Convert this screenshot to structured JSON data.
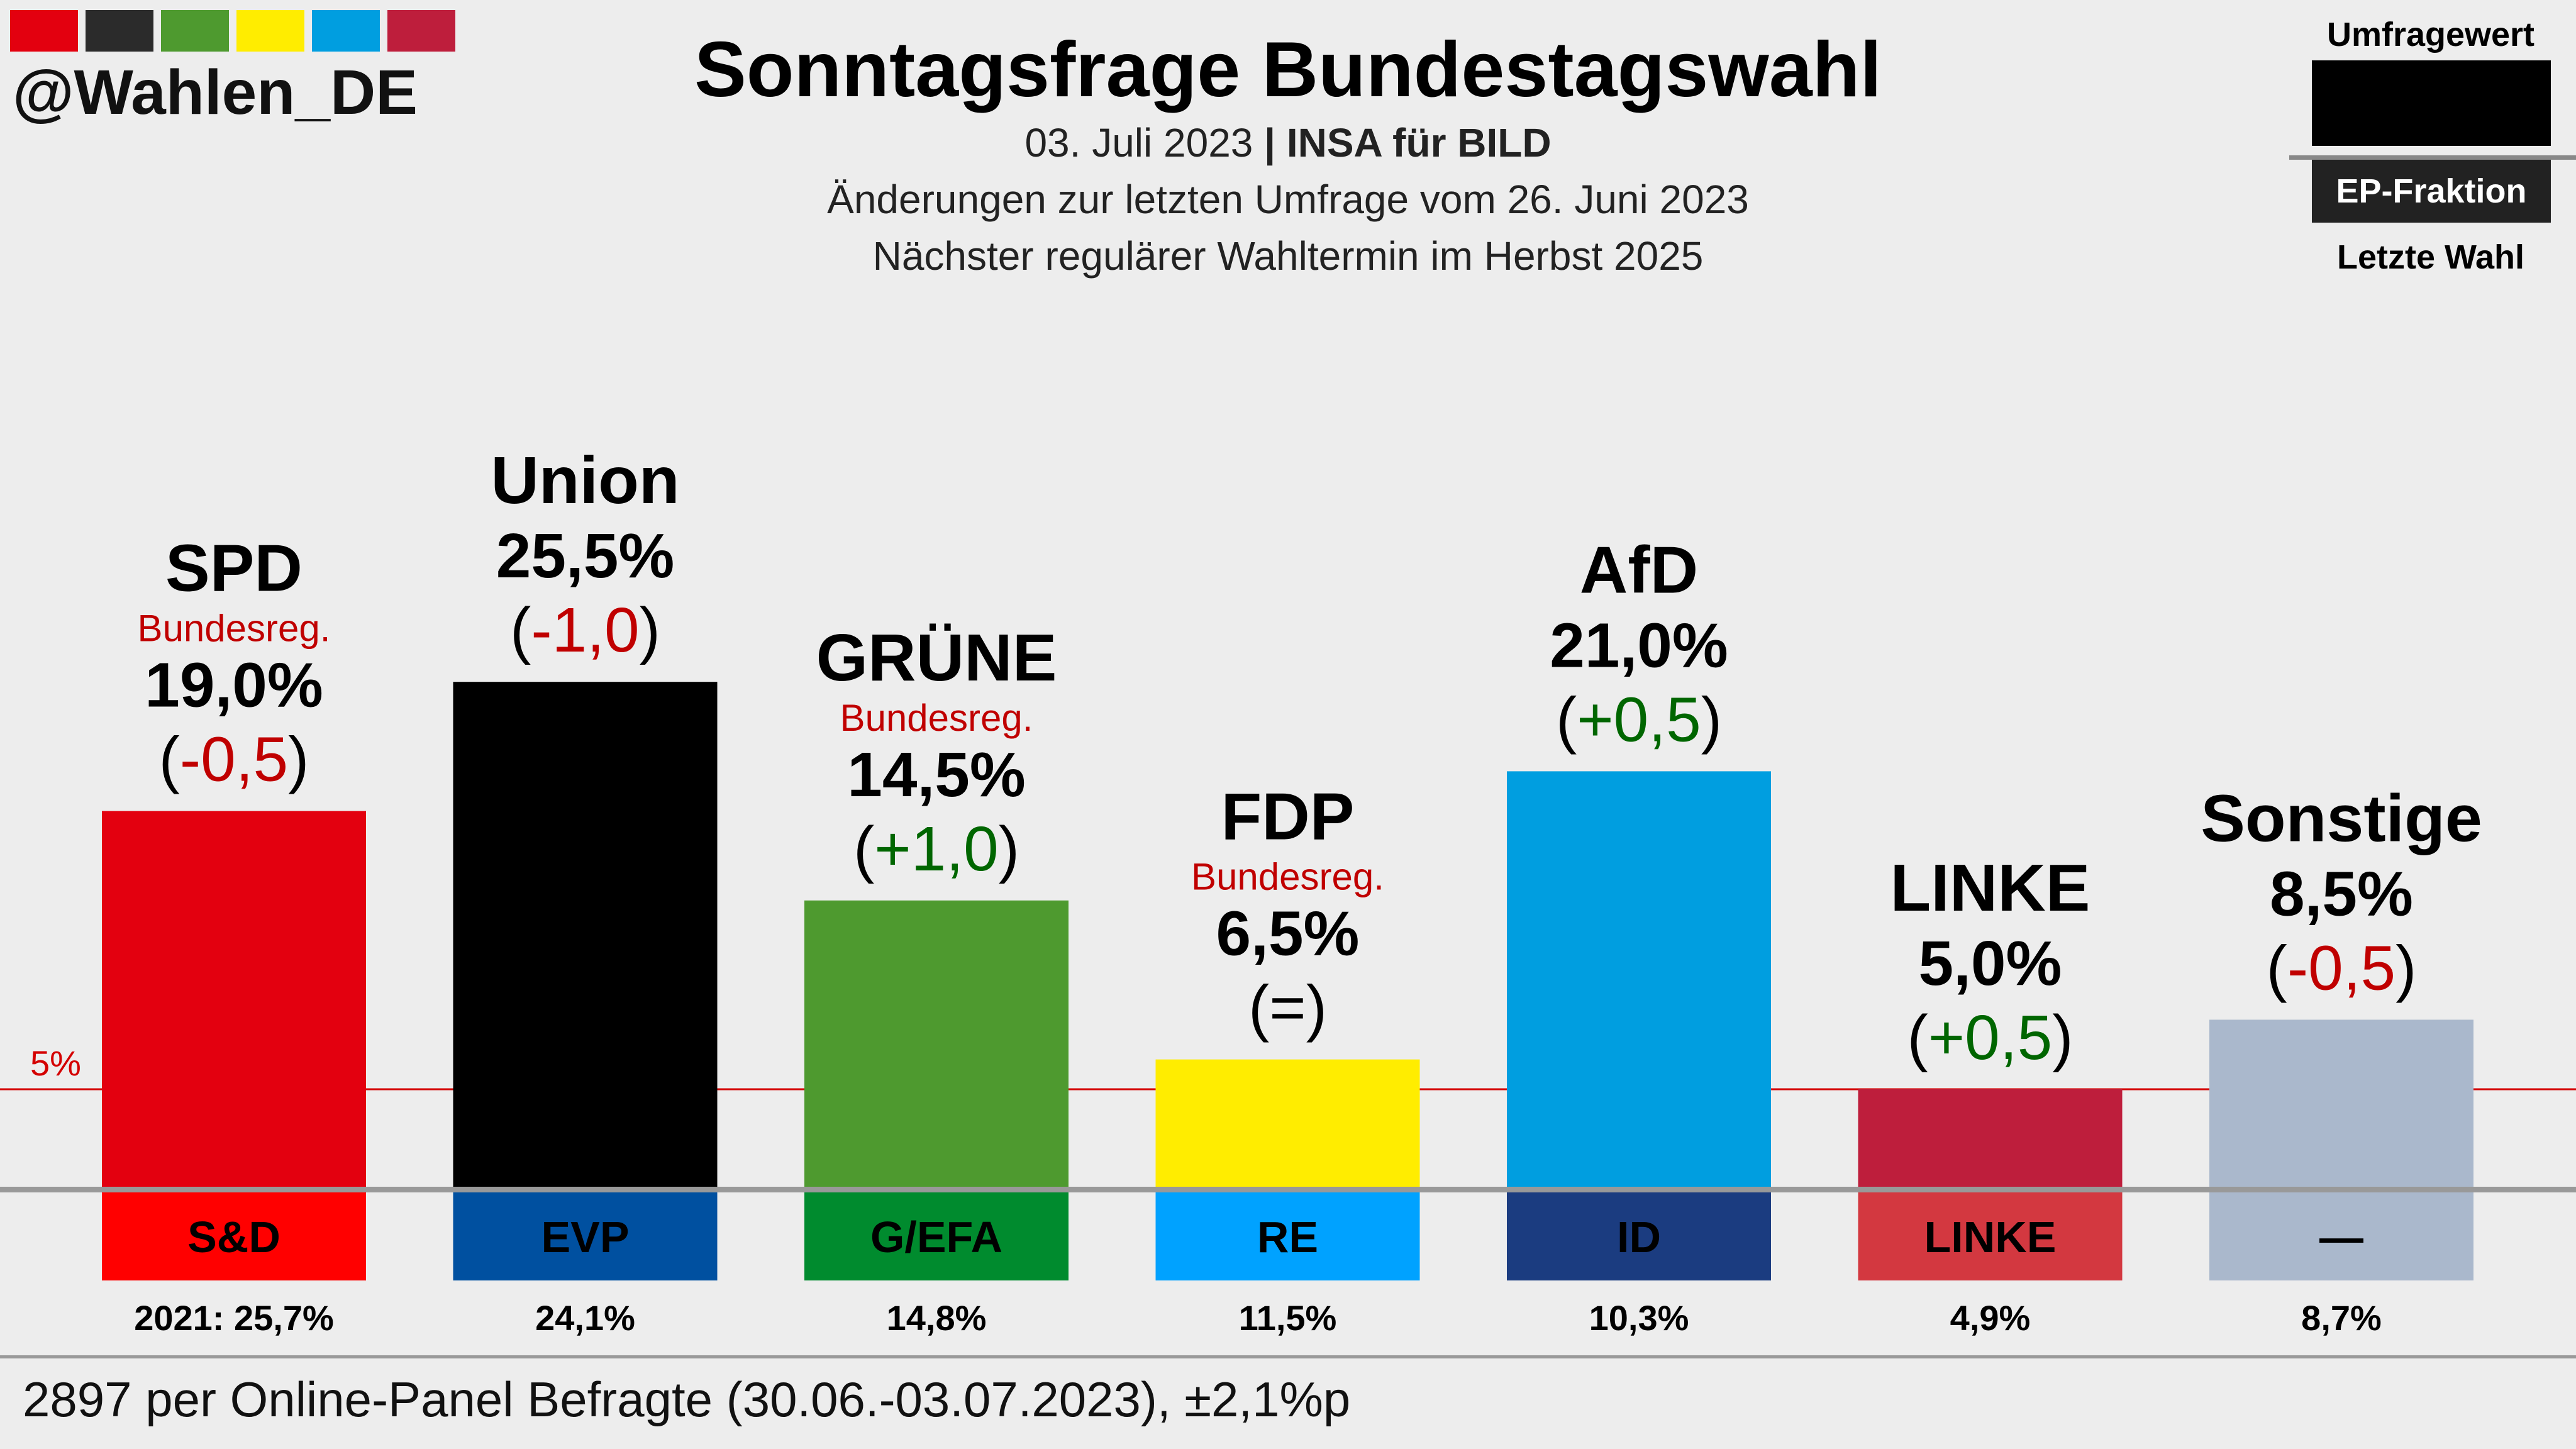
{
  "header": {
    "handle": "@Wahlen_DE",
    "title": "Sonntagsfrage Bundestagswahl",
    "date": "03. Juli 2023",
    "separator": "|",
    "institute": "INSA für BILD",
    "change_note": "Änderungen zur letzten Umfrage vom 26. Juni 2023",
    "next_election": "Nächster regulärer Wahltermin im Herbst 2025"
  },
  "color_swatches": [
    "#e3000f",
    "#2b2b2b",
    "#4e9a2f",
    "#ffed00",
    "#009ee0",
    "#be1e3c"
  ],
  "legend": {
    "top_label": "Umfragewert",
    "box_label": "EP-Fraktion",
    "bottom_label": "Letzte Wahl"
  },
  "chart_data": {
    "type": "bar",
    "categories": [
      "SPD",
      "Union",
      "GRÜNE",
      "FDP",
      "AfD",
      "LINKE",
      "Sonstige"
    ],
    "values": [
      19.0,
      25.5,
      14.5,
      6.5,
      21.0,
      5.0,
      8.5
    ],
    "value_labels": [
      "19,0%",
      "25,5%",
      "14,5%",
      "6,5%",
      "21,0%",
      "5,0%",
      "8,5%"
    ],
    "changes": [
      "-0,5",
      "-1,0",
      "+1,0",
      "=",
      "+0,5",
      "+0,5",
      "-0,5"
    ],
    "change_direction": [
      "down",
      "down",
      "up",
      "same",
      "up",
      "up",
      "down"
    ],
    "government": [
      "Bundesreg.",
      "",
      "Bundesreg.",
      "Bundesreg.",
      "",
      "",
      ""
    ],
    "colors": [
      "#e3000f",
      "#000000",
      "#4e9a2f",
      "#ffed00",
      "#009ee0",
      "#be1e3c",
      "#aab8cc"
    ],
    "ep_groups": [
      "S&D",
      "EVP",
      "G/EFA",
      "RE",
      "ID",
      "LINKE",
      "—"
    ],
    "ep_colors": [
      "#ff0000",
      "#0050a0",
      "#008b2e",
      "#00a2ff",
      "#1b3c80",
      "#d33840",
      "#aab8cc"
    ],
    "ep_text_colors": [
      "#000000",
      "#000000",
      "#000000",
      "#000000",
      "#000000",
      "#000000",
      "#000000"
    ],
    "last_election": [
      "2021: 25,7%",
      "24,1%",
      "14,8%",
      "11,5%",
      "10,3%",
      "4,9%",
      "8,7%"
    ],
    "threshold": 5,
    "threshold_label": "5%",
    "change_colors": {
      "up": "#006600",
      "down": "#c00000",
      "same": "#000000"
    },
    "gov_color": "#c00000",
    "threshold_color": "#d40000"
  },
  "footnote": "2897 per Online-Panel Befragte (30.06.-03.07.2023), ±2,1%p"
}
